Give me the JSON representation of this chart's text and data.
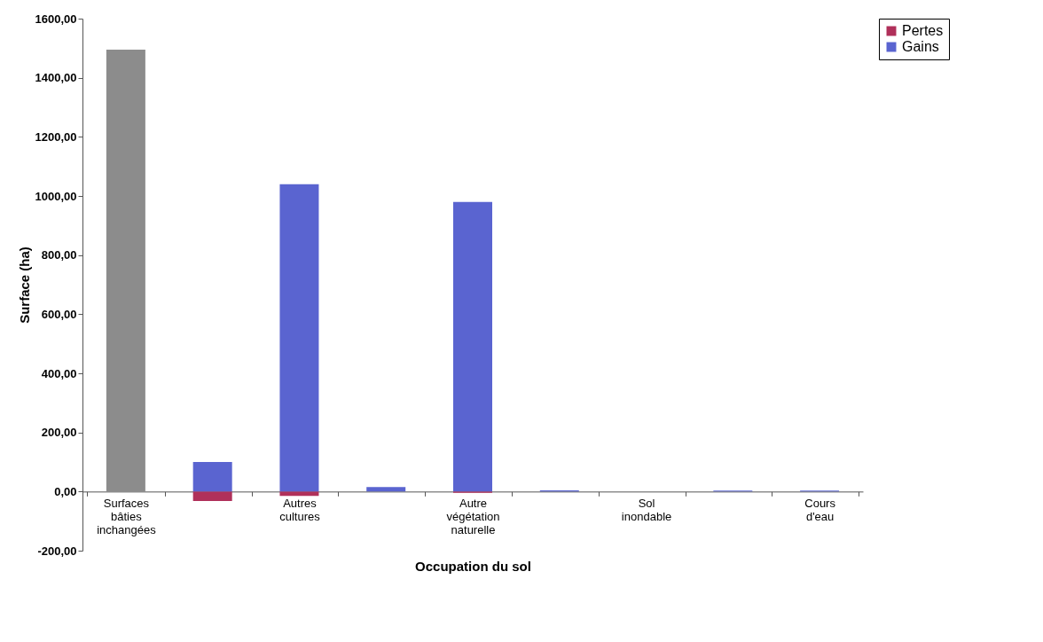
{
  "chart_data": {
    "type": "bar",
    "xlabel": "Occupation du sol",
    "ylabel": "Surface (ha)",
    "stacked": true,
    "legend": "right",
    "categories": [
      "Surfaces bâties inchangées",
      null,
      "Autres cultures",
      null,
      "Autre végétation naturelle",
      null,
      "Sol inondable",
      null,
      "Cours d'eau"
    ],
    "series": [
      {
        "color": "#8c8c8c",
        "values": [
          1495,
          null,
          null,
          null,
          null,
          null,
          null,
          null,
          null
        ]
      },
      {
        "name": "Pertes",
        "color": "#b0305a",
        "values": [
          null,
          -32,
          -15,
          null,
          -4,
          null,
          null,
          null,
          null
        ]
      },
      {
        "name": "Gains",
        "color": "#5a64d0",
        "values": [
          null,
          100,
          1040,
          15,
          980,
          4,
          null,
          3,
          3
        ]
      }
    ],
    "ylim": [
      -200,
      1600
    ],
    "yticks": [
      {
        "value": -200,
        "label": "-200,00"
      },
      {
        "value": 0,
        "label": "0,00"
      },
      {
        "value": 200,
        "label": "200,00"
      },
      {
        "value": 400,
        "label": "400,00"
      },
      {
        "value": 600,
        "label": "600,00"
      },
      {
        "value": 800,
        "label": "800,00"
      },
      {
        "value": 1000,
        "label": "1000,00"
      },
      {
        "value": 1200,
        "label": "1200,00"
      },
      {
        "value": 1400,
        "label": "1400,00"
      },
      {
        "value": 1600,
        "label": "1600,00"
      }
    ]
  }
}
